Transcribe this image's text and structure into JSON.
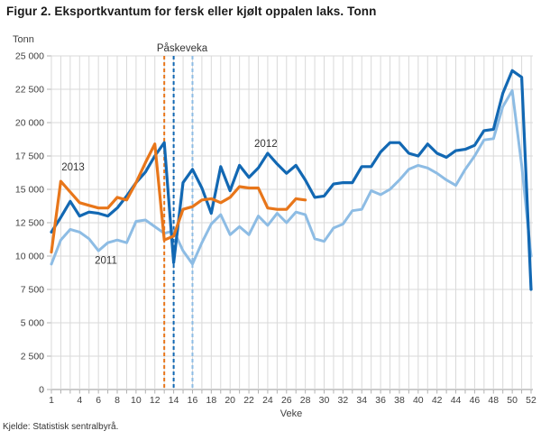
{
  "title": "Figur 2. Eksportkvantum for fersk eller kjølt oppalen laks. Tonn",
  "source": "Kjelde: Statistisk sentralbyrå.",
  "chart_data": {
    "type": "line",
    "title": "Figur 2. Eksportkvantum for fersk eller kjølt oppalen laks. Tonn",
    "ylabel": "Tonn",
    "xlabel": "Veke",
    "ylim": [
      0,
      25000
    ],
    "y_tick_step": 2500,
    "xlim": [
      1,
      52
    ],
    "x_tick_labels": [
      1,
      4,
      6,
      8,
      10,
      12,
      14,
      16,
      18,
      20,
      22,
      24,
      26,
      28,
      30,
      32,
      34,
      36,
      38,
      40,
      42,
      44,
      46,
      48,
      50,
      52
    ],
    "grid": "both, light gray, every week vertical / every 2500 horizontal",
    "legend_position": "inline labels next to lines",
    "annotation": {
      "label": "Påskeveka",
      "label_week": 14.9,
      "lines": [
        {
          "year": "2013",
          "week": 13,
          "color": "#E8761A"
        },
        {
          "year": "2012",
          "week": 14,
          "color": "#1268B3"
        },
        {
          "year": "2011",
          "week": 16,
          "color": "#8DBCE4"
        }
      ]
    },
    "series": [
      {
        "name": "2011",
        "color": "#8DBCE4",
        "width": 3,
        "label": {
          "text": "2011",
          "week": 6.8,
          "value": 9700
        },
        "start_week": 1,
        "values": [
          9400,
          11200,
          12000,
          11800,
          11300,
          10400,
          11000,
          11200,
          11000,
          12600,
          12700,
          12200,
          11700,
          11900,
          10400,
          9400,
          11000,
          12400,
          13100,
          11600,
          12200,
          11600,
          13000,
          12300,
          13200,
          12500,
          13300,
          13100,
          11300,
          11100,
          12100,
          12400,
          13400,
          13500,
          14900,
          14600,
          15000,
          15700,
          16500,
          16800,
          16600,
          16200,
          15700,
          15300,
          16500,
          17500,
          18700,
          18800,
          21200,
          22400,
          16800,
          10000
        ]
      },
      {
        "name": "2012",
        "color": "#1268B3",
        "width": 3.2,
        "label": {
          "text": "2012",
          "week": 23.8,
          "value": 18450
        },
        "start_week": 1,
        "values": [
          11800,
          12900,
          14100,
          13000,
          13300,
          13200,
          13000,
          13600,
          14500,
          15500,
          16300,
          17500,
          18500,
          9500,
          15500,
          16500,
          15100,
          13200,
          16700,
          14900,
          16800,
          15900,
          16600,
          17700,
          16900,
          16200,
          16800,
          15700,
          14400,
          14500,
          15400,
          15500,
          15500,
          16700,
          16700,
          17800,
          18500,
          18500,
          17700,
          17500,
          18400,
          17700,
          17400,
          17900,
          18000,
          18300,
          19400,
          19500,
          22200,
          23900,
          23400,
          7500
        ]
      },
      {
        "name": "2013",
        "color": "#E8761A",
        "width": 3.2,
        "label": {
          "text": "2013",
          "week": 3.3,
          "value": 16700
        },
        "start_week": 1,
        "values": [
          10300,
          15600,
          14800,
          14000,
          13800,
          13600,
          13600,
          14400,
          14200,
          15500,
          17000,
          18400,
          11200,
          11500,
          13500,
          13700,
          14200,
          14300,
          14000,
          14400,
          15200,
          15100,
          15100,
          13600,
          13500,
          13500,
          14300,
          14200
        ]
      }
    ],
    "colors": {
      "grid": "#D9D9D9",
      "axis": "#9A9A9A",
      "tick": "#B0B0B0",
      "tick_text": "#404040",
      "label_text": "#333333"
    }
  }
}
